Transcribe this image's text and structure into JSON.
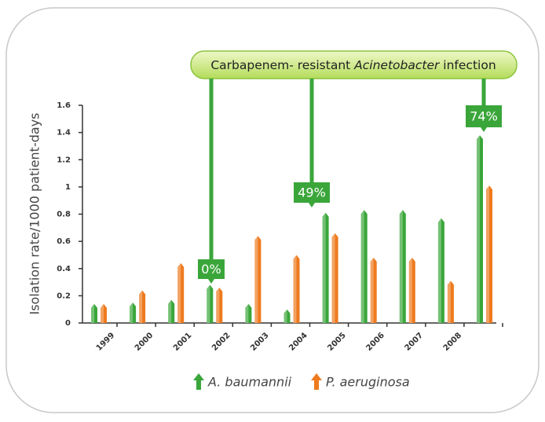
{
  "chart_data": {
    "type": "bar",
    "y_label": "Isolation rate/1000 patient-days",
    "categories": [
      "1999",
      "2000",
      "2001",
      "2002",
      "2003",
      "2004",
      "2005",
      "2006",
      "2007",
      "2008",
      null
    ],
    "series": [
      {
        "name": "A. baumannii",
        "color": "#3aa63a",
        "values": [
          0.14,
          0.15,
          0.17,
          0.28,
          0.14,
          0.1,
          0.81,
          0.83,
          0.83,
          0.77,
          1.38
        ]
      },
      {
        "name": "P. aeruginosa",
        "color": "#ee7a1e",
        "values": [
          0.14,
          0.24,
          0.44,
          0.26,
          0.64,
          0.5,
          0.66,
          0.48,
          0.48,
          0.31,
          1.01
        ]
      }
    ],
    "ylim": [
      0,
      1.6
    ],
    "yticks": [
      0,
      0.2,
      0.4,
      0.6,
      0.8,
      1,
      1.2,
      1.4,
      1.6
    ],
    "annotation": [
      "Carbapenem- resistant ",
      "Acinetobacter",
      " infection"
    ],
    "percent_labels": [
      "0%",
      "49%",
      "74%"
    ]
  }
}
